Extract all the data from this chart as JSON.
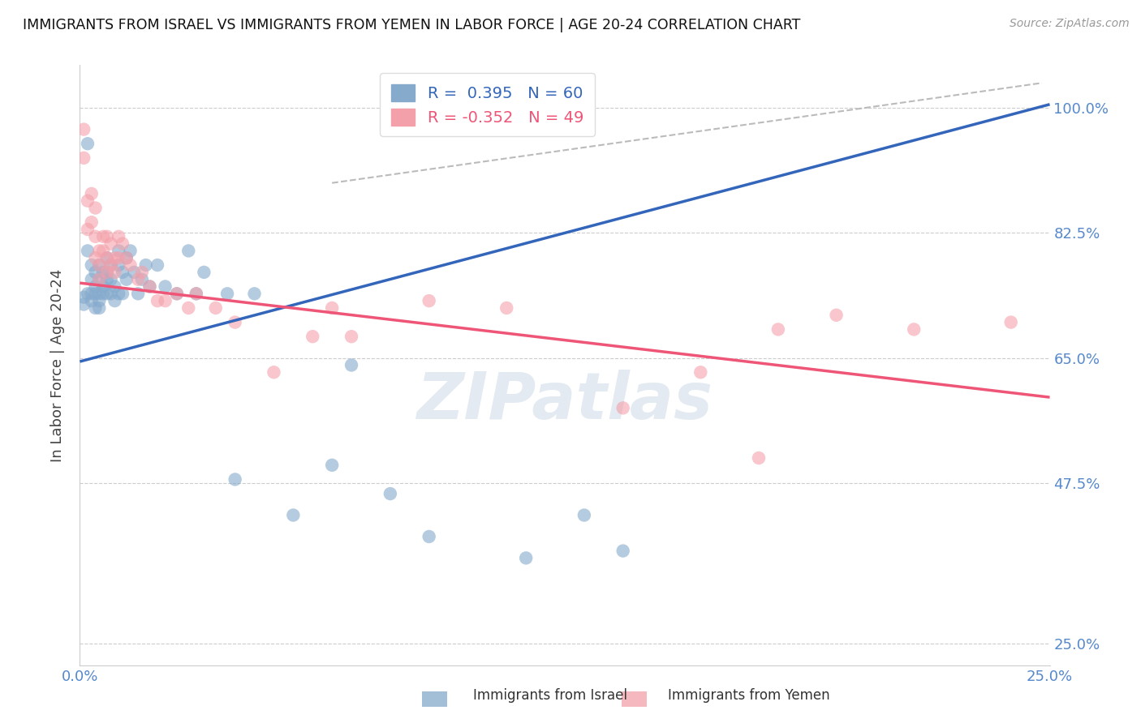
{
  "title": "IMMIGRANTS FROM ISRAEL VS IMMIGRANTS FROM YEMEN IN LABOR FORCE | AGE 20-24 CORRELATION CHART",
  "source": "Source: ZipAtlas.com",
  "ylabel": "In Labor Force | Age 20-24",
  "xlim": [
    0.0,
    0.25
  ],
  "ylim": [
    0.22,
    1.06
  ],
  "yticks": [
    0.25,
    0.475,
    0.65,
    0.825,
    1.0
  ],
  "yticklabels": [
    "25.0%",
    "47.5%",
    "65.0%",
    "82.5%",
    "100.0%"
  ],
  "xticks": [
    0.0,
    0.05,
    0.1,
    0.15,
    0.2,
    0.25
  ],
  "xticklabels": [
    "0.0%",
    "",
    "",
    "",
    "",
    "25.0%"
  ],
  "israel_r": 0.395,
  "israel_n": 60,
  "yemen_r": -0.352,
  "yemen_n": 49,
  "israel_color": "#85AACC",
  "yemen_color": "#F4A0AA",
  "israel_line_color": "#3366BB",
  "yemen_line_color": "#EE5577",
  "background_color": "#FFFFFF",
  "grid_color": "#CCCCCC",
  "axis_label_color": "#5588CC",
  "watermark_color": "#BBCCDD",
  "israel_line_x0": 0.0,
  "israel_line_y0": 0.645,
  "israel_line_x1": 0.25,
  "israel_line_y1": 1.005,
  "yemen_line_x0": 0.0,
  "yemen_line_y0": 0.755,
  "yemen_line_x1": 0.25,
  "yemen_line_y1": 0.595,
  "dash_line_x0": 0.065,
  "dash_line_y0": 0.895,
  "dash_line_x1": 0.248,
  "dash_line_y1": 1.035,
  "israel_x": [
    0.001,
    0.001,
    0.002,
    0.002,
    0.002,
    0.003,
    0.003,
    0.003,
    0.003,
    0.004,
    0.004,
    0.004,
    0.004,
    0.005,
    0.005,
    0.005,
    0.005,
    0.005,
    0.006,
    0.006,
    0.006,
    0.007,
    0.007,
    0.007,
    0.007,
    0.008,
    0.008,
    0.008,
    0.009,
    0.009,
    0.01,
    0.01,
    0.01,
    0.011,
    0.011,
    0.012,
    0.012,
    0.013,
    0.014,
    0.015,
    0.016,
    0.017,
    0.018,
    0.02,
    0.022,
    0.025,
    0.028,
    0.03,
    0.032,
    0.038,
    0.04,
    0.045,
    0.055,
    0.065,
    0.07,
    0.08,
    0.09,
    0.115,
    0.13,
    0.14
  ],
  "israel_y": [
    0.735,
    0.725,
    0.95,
    0.8,
    0.74,
    0.78,
    0.76,
    0.74,
    0.73,
    0.77,
    0.75,
    0.74,
    0.72,
    0.78,
    0.76,
    0.74,
    0.73,
    0.72,
    0.77,
    0.75,
    0.74,
    0.79,
    0.77,
    0.76,
    0.74,
    0.78,
    0.76,
    0.74,
    0.75,
    0.73,
    0.8,
    0.78,
    0.74,
    0.77,
    0.74,
    0.79,
    0.76,
    0.8,
    0.77,
    0.74,
    0.76,
    0.78,
    0.75,
    0.78,
    0.75,
    0.74,
    0.8,
    0.74,
    0.77,
    0.74,
    0.48,
    0.74,
    0.43,
    0.5,
    0.64,
    0.46,
    0.4,
    0.37,
    0.43,
    0.38
  ],
  "yemen_x": [
    0.001,
    0.001,
    0.002,
    0.002,
    0.003,
    0.003,
    0.004,
    0.004,
    0.004,
    0.005,
    0.005,
    0.005,
    0.006,
    0.006,
    0.007,
    0.007,
    0.007,
    0.008,
    0.008,
    0.009,
    0.009,
    0.01,
    0.01,
    0.011,
    0.012,
    0.013,
    0.015,
    0.016,
    0.018,
    0.02,
    0.022,
    0.025,
    0.028,
    0.03,
    0.035,
    0.04,
    0.05,
    0.06,
    0.065,
    0.07,
    0.09,
    0.11,
    0.14,
    0.16,
    0.175,
    0.18,
    0.195,
    0.215,
    0.24
  ],
  "yemen_y": [
    0.97,
    0.93,
    0.87,
    0.83,
    0.88,
    0.84,
    0.86,
    0.82,
    0.79,
    0.8,
    0.78,
    0.76,
    0.82,
    0.8,
    0.82,
    0.79,
    0.77,
    0.81,
    0.78,
    0.79,
    0.77,
    0.82,
    0.79,
    0.81,
    0.79,
    0.78,
    0.76,
    0.77,
    0.75,
    0.73,
    0.73,
    0.74,
    0.72,
    0.74,
    0.72,
    0.7,
    0.63,
    0.68,
    0.72,
    0.68,
    0.73,
    0.72,
    0.58,
    0.63,
    0.51,
    0.69,
    0.71,
    0.69,
    0.7
  ]
}
